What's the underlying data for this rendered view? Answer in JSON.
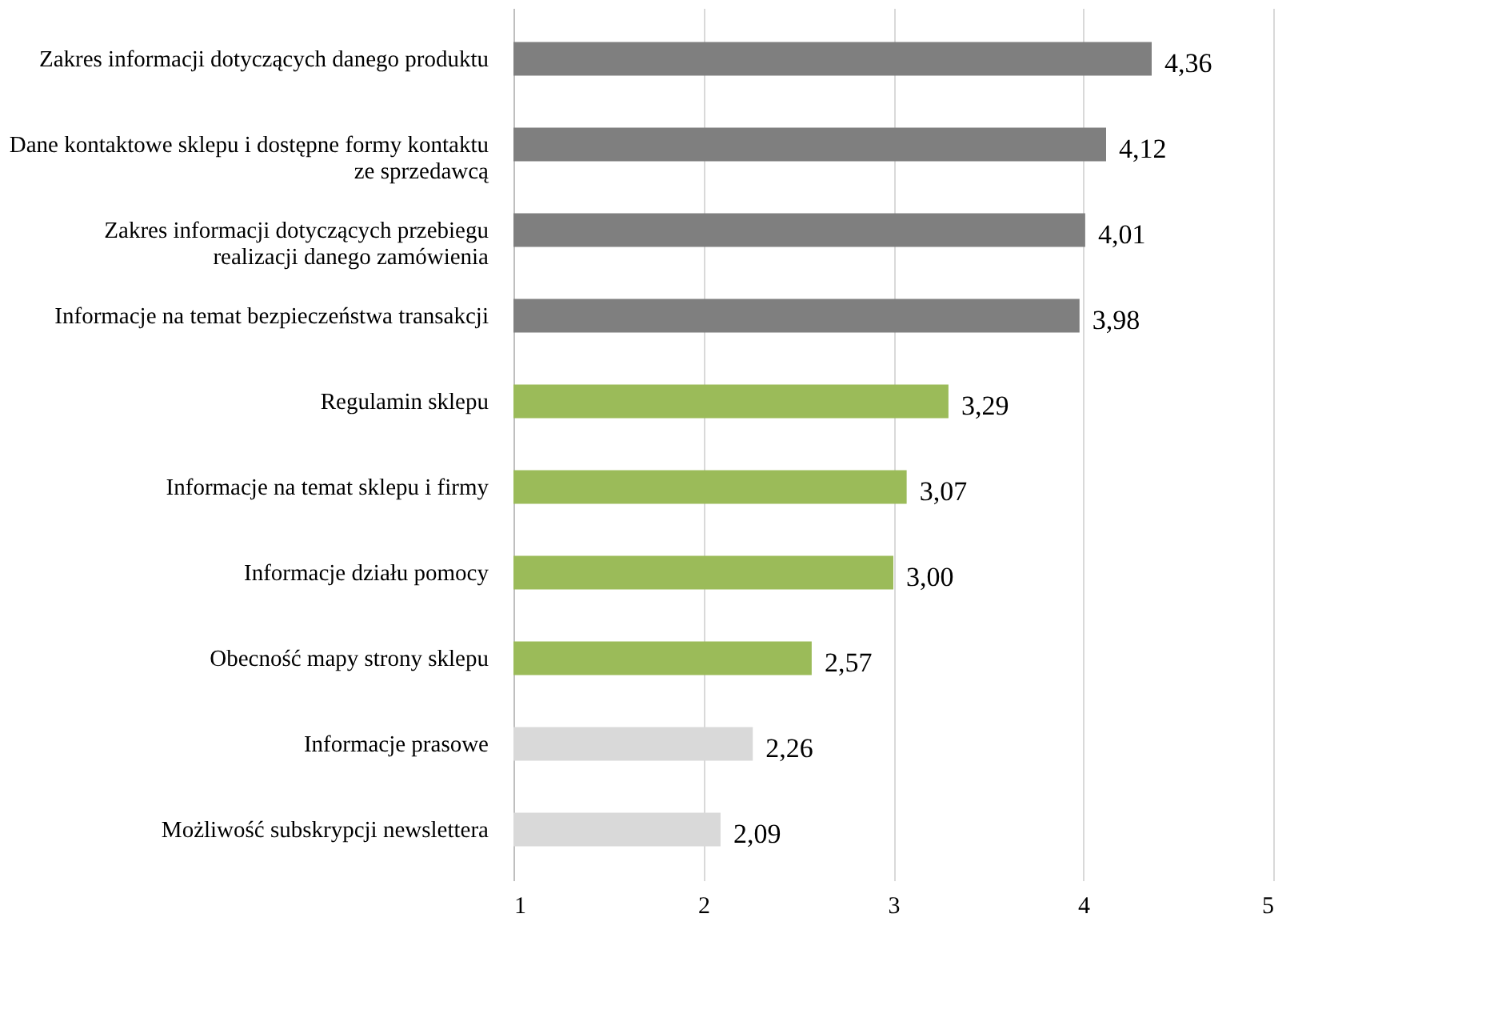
{
  "chart_data": {
    "type": "bar",
    "orientation": "horizontal",
    "categories": [
      "Zakres informacji dotyczących danego produktu",
      "Dane kontaktowe sklepu i dostępne formy kontaktu ze sprzedawcą",
      "Zakres informacji dotyczących przebiegu realizacji danego zamówienia",
      "Informacje na temat bezpieczeństwa transakcji",
      "Regulamin sklepu",
      "Informacje na temat sklepu i firmy",
      "Informacje działu pomocy",
      "Obecność mapy strony sklepu",
      "Informacje prasowe",
      "Możliwość subskrypcji newslettera"
    ],
    "values": [
      4.36,
      4.12,
      4.01,
      3.98,
      3.29,
      3.07,
      3.0,
      2.57,
      2.26,
      2.09
    ],
    "value_labels": [
      "4,36",
      "4,12",
      "4,01",
      "3,98",
      "3,29",
      "3,07",
      "3,00",
      "2,57",
      "2,26",
      "2,09"
    ],
    "colors": [
      "#7f7f7f",
      "#7f7f7f",
      "#7f7f7f",
      "#7f7f7f",
      "#9bbb59",
      "#9bbb59",
      "#9bbb59",
      "#9bbb59",
      "#d9d9d9",
      "#d9d9d9"
    ],
    "xlim": [
      1,
      5
    ],
    "xticks": [
      1,
      2,
      3,
      4,
      5
    ],
    "grid": "x"
  }
}
